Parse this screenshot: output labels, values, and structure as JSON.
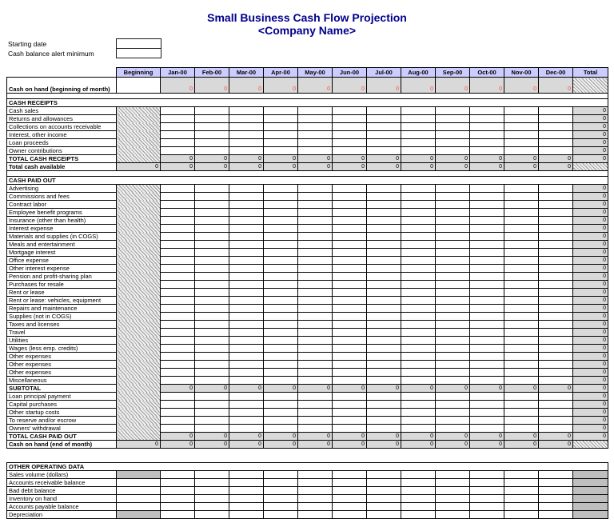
{
  "title": {
    "line1": "Small Business Cash Flow Projection",
    "line2": "<Company Name>"
  },
  "settings": {
    "starting_date_label": "Starting date",
    "alert_minimum_label": "Cash balance alert minimum",
    "starting_date_value": "",
    "alert_minimum_value": ""
  },
  "colors": {
    "title_navy": "#00008B",
    "header_bg": "#CCCCFF",
    "computed_gray": "#D9D9D9",
    "dark_gray": "#BFBFBF",
    "zero_red": "#FF4747",
    "border": "#000000"
  },
  "main_table": {
    "columns": [
      "Beginning",
      "Jan-00",
      "Feb-00",
      "Mar-00",
      "Apr-00",
      "May-00",
      "Jun-00",
      "Jul-00",
      "Aug-00",
      "Sep-00",
      "Oct-00",
      "Nov-00",
      "Dec-00",
      "Total"
    ],
    "rows": [
      {
        "kind": "open",
        "label": "Cash on hand (beginning of month)",
        "beginning_value": "",
        "months_value": "0"
      },
      {
        "kind": "spacer"
      },
      {
        "kind": "section",
        "label": "CASH RECEIPTS"
      },
      {
        "kind": "input",
        "label": "Cash sales",
        "total_value": "0"
      },
      {
        "kind": "input",
        "label": "Returns and allowances",
        "total_value": "0"
      },
      {
        "kind": "input",
        "label": "Collections on accounts receivable",
        "total_value": "0"
      },
      {
        "kind": "input",
        "label": "Interest, other income",
        "total_value": "0"
      },
      {
        "kind": "input",
        "label": "Loan proceeds",
        "total_value": "0"
      },
      {
        "kind": "input",
        "label": "Owner contributions",
        "total_value": "0"
      },
      {
        "kind": "total",
        "label": "TOTAL CASH RECEIPTS",
        "months_value": "0",
        "total_value": "0"
      },
      {
        "kind": "carry",
        "label": "Total cash available",
        "beginning_value": "0",
        "months_value": "0"
      },
      {
        "kind": "spacer"
      },
      {
        "kind": "section",
        "label": "CASH PAID OUT"
      },
      {
        "kind": "input",
        "label": "Advertising",
        "total_value": "0"
      },
      {
        "kind": "input",
        "label": "Commissions and fees",
        "total_value": "0"
      },
      {
        "kind": "input",
        "label": "Contract labor",
        "total_value": "0"
      },
      {
        "kind": "input",
        "label": "Employee benefit programs",
        "total_value": "0"
      },
      {
        "kind": "input",
        "label": "Insurance (other than health)",
        "total_value": "0"
      },
      {
        "kind": "input",
        "label": "Interest expense",
        "total_value": "0"
      },
      {
        "kind": "input",
        "label": "Materials and supplies (in COGS)",
        "total_value": "0"
      },
      {
        "kind": "input",
        "label": "Meals and entertainment",
        "total_value": "0"
      },
      {
        "kind": "input",
        "label": "Mortgage interest",
        "total_value": "0"
      },
      {
        "kind": "input",
        "label": "Office expense",
        "total_value": "0"
      },
      {
        "kind": "input",
        "label": "Other interest expense",
        "total_value": "0"
      },
      {
        "kind": "input",
        "label": "Pension and profit-sharing plan",
        "total_value": "0"
      },
      {
        "kind": "input",
        "label": "Purchases for resale",
        "total_value": "0"
      },
      {
        "kind": "input",
        "label": "Rent or lease",
        "total_value": "0"
      },
      {
        "kind": "input",
        "label": "Rent or lease: vehicles, equipment",
        "total_value": "0"
      },
      {
        "kind": "input",
        "label": "Repairs and maintenance",
        "total_value": "0"
      },
      {
        "kind": "input",
        "label": "Supplies (not in COGS)",
        "total_value": "0"
      },
      {
        "kind": "input",
        "label": "Taxes and licenses",
        "total_value": "0"
      },
      {
        "kind": "input",
        "label": "Travel",
        "total_value": "0"
      },
      {
        "kind": "input",
        "label": "Utilities",
        "total_value": "0"
      },
      {
        "kind": "input",
        "label": "Wages (less emp. credits)",
        "total_value": "0"
      },
      {
        "kind": "input",
        "label": "Other expenses",
        "total_value": "0"
      },
      {
        "kind": "input",
        "label": "Other expenses",
        "total_value": "0"
      },
      {
        "kind": "input",
        "label": "Other expenses",
        "total_value": "0"
      },
      {
        "kind": "input",
        "label": "Miscellaneous",
        "total_value": "0"
      },
      {
        "kind": "total",
        "label": "SUBTOTAL",
        "months_value": "0",
        "total_value": "0"
      },
      {
        "kind": "input",
        "label": "Loan principal payment",
        "total_value": "0"
      },
      {
        "kind": "input",
        "label": "Capital purchases",
        "total_value": "0"
      },
      {
        "kind": "input",
        "label": "Other startup costs",
        "total_value": "0"
      },
      {
        "kind": "input",
        "label": "To reserve and/or escrow",
        "total_value": "0"
      },
      {
        "kind": "input",
        "label": "Owners' withdrawal",
        "total_value": "0"
      },
      {
        "kind": "total",
        "label": "TOTAL CASH PAID OUT",
        "months_value": "0",
        "total_value": "0"
      },
      {
        "kind": "carry",
        "label": "Cash on hand (end of month)",
        "beginning_value": "0",
        "months_value": "0"
      }
    ]
  },
  "other_table": {
    "section_label": "OTHER OPERATING DATA",
    "rows": [
      {
        "kind": "odata",
        "label": "Sales volume (dollars)",
        "beginning_gray": true
      },
      {
        "kind": "odata",
        "label": "Accounts receivable balance",
        "beginning_gray": false
      },
      {
        "kind": "odata",
        "label": "Bad debt balance",
        "beginning_gray": false
      },
      {
        "kind": "odata",
        "label": "Inventory on hand",
        "beginning_gray": false
      },
      {
        "kind": "odata",
        "label": "Accounts payable balance",
        "beginning_gray": false
      },
      {
        "kind": "odata",
        "label": "Depreciation",
        "beginning_gray": true
      }
    ]
  }
}
